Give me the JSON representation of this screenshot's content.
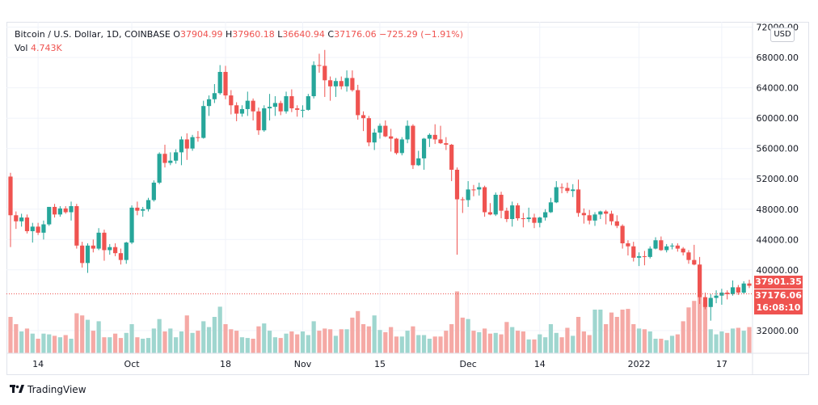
{
  "legend": {
    "symbol": "Bitcoin / U.S. Dollar, 1D, COINBASE",
    "open_label": "O",
    "open": "37904.99",
    "high_label": "H",
    "high": "37960.18",
    "low_label": "L",
    "low": "36640.94",
    "close_label": "C",
    "close": "37176.06",
    "change": "−725.29 (−1.91%)",
    "vol_label": "Vol",
    "vol": "4.743K"
  },
  "currency_button": "USD",
  "price_tags": {
    "last": "37901.35",
    "close": "37176.06",
    "countdown": "16:08:10"
  },
  "footer": {
    "brand": "TradingView"
  },
  "colors": {
    "up": "#26a69a",
    "down": "#ef5350",
    "up_vol": "#9fd6cf",
    "down_vol": "#f5a9a5"
  },
  "chart_data": {
    "type": "candlestick",
    "symbol": "Bitcoin / U.S. Dollar",
    "interval": "1D",
    "exchange": "COINBASE",
    "y_ticks": [
      72000,
      68000,
      64000,
      60000,
      56000,
      52000,
      48000,
      44000,
      40000,
      32000
    ],
    "y_tick_labels": [
      "72000.00",
      "68000.00",
      "64000.00",
      "60000.00",
      "56000.00",
      "52000.00",
      "48000.00",
      "44000.00",
      "40000.00",
      "32000.00"
    ],
    "ylim": [
      29000,
      72600
    ],
    "x_tick_labels": [
      {
        "label": "14",
        "index": 5
      },
      {
        "label": "Oct",
        "index": 22
      },
      {
        "label": "18",
        "index": 39
      },
      {
        "label": "Nov",
        "index": 53
      },
      {
        "label": "15",
        "index": 67
      },
      {
        "label": "Dec",
        "index": 83
      },
      {
        "label": "14",
        "index": 96
      },
      {
        "label": "2022",
        "index": 114
      },
      {
        "label": "17",
        "index": 129
      }
    ],
    "candles": [
      [
        52300,
        52800,
        43000,
        47200
      ],
      [
        47200,
        47700,
        45400,
        46400
      ],
      [
        46400,
        47400,
        45700,
        46900
      ],
      [
        46900,
        47300,
        44800,
        45100
      ],
      [
        45100,
        46200,
        43600,
        45700
      ],
      [
        45700,
        46200,
        44600,
        44900
      ],
      [
        44900,
        46500,
        44000,
        46000
      ],
      [
        46000,
        48300,
        45800,
        48300
      ],
      [
        48300,
        48700,
        46900,
        47300
      ],
      [
        47300,
        48400,
        47000,
        48100
      ],
      [
        48100,
        48400,
        47400,
        47600
      ],
      [
        47600,
        49000,
        46500,
        48400
      ],
      [
        48400,
        48700,
        42800,
        43200
      ],
      [
        43200,
        43700,
        40300,
        40900
      ],
      [
        40900,
        43500,
        39600,
        43200
      ],
      [
        43200,
        44000,
        42300,
        42800
      ],
      [
        42800,
        45500,
        42600,
        44900
      ],
      [
        44900,
        45300,
        41200,
        42600
      ],
      [
        42600,
        43400,
        42000,
        43000
      ],
      [
        43000,
        43500,
        41800,
        42200
      ],
      [
        42200,
        42800,
        40700,
        41300
      ],
      [
        41300,
        43700,
        40800,
        43600
      ],
      [
        43600,
        48500,
        43400,
        48200
      ],
      [
        48200,
        49000,
        47200,
        47800
      ],
      [
        47800,
        48300,
        47000,
        48000
      ],
      [
        48000,
        49500,
        47700,
        49200
      ],
      [
        49200,
        51800,
        49000,
        51500
      ],
      [
        51500,
        55500,
        51300,
        55300
      ],
      [
        55300,
        56500,
        53500,
        54100
      ],
      [
        54100,
        55500,
        53800,
        54400
      ],
      [
        54400,
        55900,
        54000,
        55500
      ],
      [
        55500,
        57600,
        53800,
        57200
      ],
      [
        57200,
        58000,
        54500,
        56000
      ],
      [
        56000,
        57800,
        55700,
        57500
      ],
      [
        57500,
        58300,
        56900,
        57400
      ],
      [
        57400,
        62300,
        57300,
        61600
      ],
      [
        61600,
        63000,
        60300,
        62500
      ],
      [
        62500,
        64500,
        62000,
        63300
      ],
      [
        63300,
        67000,
        63100,
        66100
      ],
      [
        66100,
        66900,
        62500,
        63000
      ],
      [
        63000,
        63700,
        60500,
        61700
      ],
      [
        61700,
        62100,
        59600,
        60600
      ],
      [
        60600,
        61700,
        60200,
        61200
      ],
      [
        61200,
        63500,
        60300,
        62300
      ],
      [
        62300,
        62600,
        59700,
        60900
      ],
      [
        60900,
        61400,
        57800,
        58400
      ],
      [
        58400,
        61700,
        58200,
        61300
      ],
      [
        61300,
        63200,
        59700,
        61500
      ],
      [
        61500,
        62900,
        60300,
        62000
      ],
      [
        62000,
        62300,
        60400,
        60900
      ],
      [
        60900,
        63500,
        60600,
        62900
      ],
      [
        62900,
        63800,
        60800,
        61300
      ],
      [
        61300,
        61700,
        60200,
        61100
      ],
      [
        61100,
        61700,
        60100,
        61100
      ],
      [
        61100,
        63200,
        61000,
        62900
      ],
      [
        62900,
        67500,
        62600,
        67000
      ],
      [
        67000,
        68500,
        66000,
        66900
      ],
      [
        66900,
        69000,
        62800,
        65000
      ],
      [
        65000,
        65500,
        62300,
        64200
      ],
      [
        64200,
        65300,
        62800,
        64900
      ],
      [
        64900,
        65500,
        63800,
        64200
      ],
      [
        64200,
        66300,
        63500,
        65300
      ],
      [
        65300,
        66300,
        63500,
        63700
      ],
      [
        63700,
        64400,
        59800,
        60400
      ],
      [
        60400,
        60900,
        58300,
        60000
      ],
      [
        60000,
        60300,
        56300,
        56800
      ],
      [
        56800,
        58600,
        55800,
        58100
      ],
      [
        58100,
        59300,
        57300,
        59000
      ],
      [
        59000,
        59700,
        57500,
        57600
      ],
      [
        57600,
        58600,
        55600,
        57300
      ],
      [
        57300,
        57400,
        55200,
        55400
      ],
      [
        55400,
        57500,
        55100,
        57200
      ],
      [
        57200,
        59700,
        56700,
        59000
      ],
      [
        59000,
        59200,
        53300,
        53800
      ],
      [
        53800,
        55700,
        53700,
        54700
      ],
      [
        54700,
        57400,
        53200,
        57300
      ],
      [
        57300,
        58000,
        56200,
        57800
      ],
      [
        57800,
        59200,
        56600,
        57200
      ],
      [
        57200,
        59000,
        56600,
        56700
      ],
      [
        56700,
        57500,
        55800,
        56500
      ],
      [
        56500,
        56600,
        51700,
        53200
      ],
      [
        53200,
        53500,
        42000,
        49300
      ],
      [
        49300,
        49600,
        47500,
        49200
      ],
      [
        49200,
        51700,
        48300,
        50600
      ],
      [
        50600,
        51200,
        49700,
        50500
      ],
      [
        50600,
        51500,
        49800,
        50900
      ],
      [
        50900,
        51100,
        47000,
        47600
      ],
      [
        47600,
        48800,
        47200,
        47300
      ],
      [
        47300,
        50200,
        47100,
        49900
      ],
      [
        49900,
        50300,
        46800,
        47800
      ],
      [
        47800,
        48200,
        46300,
        46700
      ],
      [
        46700,
        49000,
        45700,
        48500
      ],
      [
        48500,
        48800,
        46500,
        46800
      ],
      [
        46800,
        47500,
        45600,
        46700
      ],
      [
        46700,
        48200,
        46300,
        46900
      ],
      [
        46900,
        47400,
        45500,
        46200
      ],
      [
        46200,
        47000,
        45600,
        46900
      ],
      [
        46900,
        48000,
        46500,
        47600
      ],
      [
        47600,
        49500,
        47500,
        48900
      ],
      [
        48900,
        51700,
        48800,
        50900
      ],
      [
        50900,
        51400,
        50100,
        50800
      ],
      [
        50800,
        51500,
        50100,
        50400
      ],
      [
        50400,
        51300,
        49600,
        50600
      ],
      [
        50600,
        51900,
        47000,
        47500
      ],
      [
        47500,
        48100,
        46100,
        47200
      ],
      [
        47200,
        47900,
        46000,
        46500
      ],
      [
        46500,
        47600,
        45800,
        47300
      ],
      [
        47300,
        47800,
        46700,
        47700
      ],
      [
        47700,
        47900,
        46000,
        47400
      ],
      [
        47400,
        47800,
        45900,
        46400
      ],
      [
        46400,
        47200,
        45500,
        45800
      ],
      [
        45800,
        46000,
        42800,
        43500
      ],
      [
        43500,
        43900,
        41900,
        43100
      ],
      [
        43100,
        43700,
        41100,
        41600
      ],
      [
        41600,
        42300,
        40500,
        41800
      ],
      [
        41800,
        42500,
        40600,
        41700
      ],
      [
        41700,
        43100,
        41500,
        42800
      ],
      [
        42800,
        44300,
        42700,
        43900
      ],
      [
        43900,
        44400,
        42500,
        42600
      ],
      [
        42600,
        43400,
        42300,
        43100
      ],
      [
        43100,
        43500,
        42700,
        43200
      ],
      [
        43200,
        43500,
        42400,
        42800
      ],
      [
        42800,
        43000,
        41900,
        42300
      ],
      [
        42300,
        42600,
        40800,
        41300
      ],
      [
        41300,
        43300,
        40600,
        40700
      ],
      [
        40700,
        41700,
        35500,
        36400
      ],
      [
        36400,
        37000,
        34800,
        35100
      ],
      [
        35100,
        36800,
        33300,
        36300
      ],
      [
        36300,
        37300,
        35600,
        36600
      ],
      [
        36600,
        37500,
        35400,
        37000
      ],
      [
        37000,
        37300,
        36100,
        36800
      ],
      [
        36800,
        38600,
        36600,
        37700
      ],
      [
        37700,
        38000,
        36700,
        37000
      ],
      [
        37000,
        38500,
        36800,
        38200
      ],
      [
        38200,
        38700,
        37600,
        37900
      ]
    ],
    "volume_relative": [
      0.5,
      0.4,
      0.3,
      0.34,
      0.27,
      0.2,
      0.27,
      0.26,
      0.24,
      0.22,
      0.25,
      0.2,
      0.55,
      0.52,
      0.46,
      0.31,
      0.44,
      0.22,
      0.22,
      0.27,
      0.21,
      0.28,
      0.4,
      0.22,
      0.2,
      0.21,
      0.34,
      0.47,
      0.3,
      0.34,
      0.22,
      0.3,
      0.52,
      0.28,
      0.31,
      0.44,
      0.36,
      0.5,
      0.64,
      0.4,
      0.33,
      0.31,
      0.22,
      0.21,
      0.2,
      0.37,
      0.41,
      0.31,
      0.22,
      0.21,
      0.27,
      0.3,
      0.26,
      0.3,
      0.25,
      0.44,
      0.31,
      0.34,
      0.33,
      0.24,
      0.33,
      0.33,
      0.49,
      0.58,
      0.4,
      0.37,
      0.52,
      0.32,
      0.29,
      0.36,
      0.23,
      0.23,
      0.31,
      0.37,
      0.25,
      0.25,
      0.2,
      0.23,
      0.23,
      0.31,
      0.4,
      0.85,
      0.49,
      0.47,
      0.31,
      0.29,
      0.34,
      0.27,
      0.28,
      0.26,
      0.43,
      0.36,
      0.31,
      0.3,
      0.19,
      0.19,
      0.26,
      0.22,
      0.4,
      0.28,
      0.22,
      0.35,
      0.24,
      0.5,
      0.3,
      0.25,
      0.6,
      0.6,
      0.4,
      0.56,
      0.5,
      0.6,
      0.61,
      0.4,
      0.34,
      0.33,
      0.3,
      0.2,
      0.2,
      0.18,
      0.24,
      0.26,
      0.44,
      0.63,
      0.72,
      0.85,
      0.7,
      0.33,
      0.26,
      0.3,
      0.28,
      0.34,
      0.35,
      0.31,
      0.36
    ]
  }
}
